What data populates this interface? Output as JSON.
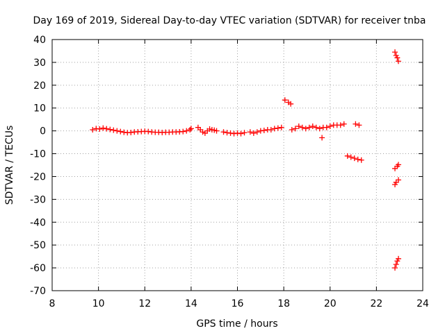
{
  "chart_data": {
    "type": "scatter",
    "title": "Day 169 of 2019, Sidereal Day-to-day VTEC variation (SDTVAR) for receiver tnba",
    "xlabel": "GPS time / hours",
    "ylabel": "SDTVAR / TECUs",
    "xlim": [
      8,
      24
    ],
    "ylim": [
      -70,
      40
    ],
    "xticks": [
      "8",
      "10",
      "12",
      "14",
      "16",
      "18",
      "20",
      "22",
      "24"
    ],
    "yticks": [
      "-70",
      "-60",
      "-50",
      "-40",
      "-30",
      "-20",
      "-10",
      "0",
      "10",
      "20",
      "30",
      "40"
    ],
    "grid": true,
    "marker": "plus",
    "color": "#ff0000",
    "series": [
      {
        "points": [
          [
            9.75,
            0.5
          ],
          [
            9.9,
            1.0
          ],
          [
            10.05,
            0.8
          ],
          [
            10.2,
            1.2
          ],
          [
            10.35,
            0.9
          ],
          [
            10.5,
            0.6
          ],
          [
            10.65,
            0.3
          ],
          [
            10.8,
            0.0
          ],
          [
            10.95,
            -0.3
          ],
          [
            11.1,
            -0.6
          ],
          [
            11.25,
            -0.8
          ],
          [
            11.4,
            -0.7
          ],
          [
            11.55,
            -0.5
          ],
          [
            11.7,
            -0.4
          ],
          [
            11.85,
            -0.3
          ],
          [
            12.0,
            -0.2
          ],
          [
            12.15,
            -0.3
          ],
          [
            12.3,
            -0.5
          ],
          [
            12.45,
            -0.6
          ],
          [
            12.6,
            -0.6
          ],
          [
            12.75,
            -0.7
          ],
          [
            12.9,
            -0.6
          ],
          [
            13.05,
            -0.6
          ],
          [
            13.2,
            -0.5
          ],
          [
            13.35,
            -0.5
          ],
          [
            13.5,
            -0.4
          ],
          [
            13.65,
            -0.3
          ],
          [
            13.8,
            0.0
          ],
          [
            13.95,
            0.5
          ],
          [
            14.0,
            1.0
          ],
          [
            14.3,
            1.5
          ],
          [
            14.4,
            0.5
          ],
          [
            14.5,
            -0.5
          ],
          [
            14.6,
            -1.0
          ],
          [
            14.7,
            0.0
          ],
          [
            14.8,
            0.8
          ],
          [
            14.9,
            0.5
          ],
          [
            15.0,
            0.3
          ],
          [
            15.1,
            0.0
          ],
          [
            15.4,
            -0.5
          ],
          [
            15.55,
            -0.8
          ],
          [
            15.7,
            -1.0
          ],
          [
            15.85,
            -1.2
          ],
          [
            16.0,
            -1.0
          ],
          [
            16.15,
            -1.2
          ],
          [
            16.3,
            -0.8
          ],
          [
            16.55,
            -0.5
          ],
          [
            16.7,
            -1.0
          ],
          [
            16.85,
            -0.5
          ],
          [
            17.0,
            0.0
          ],
          [
            17.15,
            0.2
          ],
          [
            17.3,
            0.5
          ],
          [
            17.45,
            0.5
          ],
          [
            17.6,
            1.0
          ],
          [
            17.75,
            1.2
          ],
          [
            17.9,
            1.5
          ],
          [
            18.35,
            0.5
          ],
          [
            18.5,
            1.0
          ],
          [
            18.65,
            2.0
          ],
          [
            18.8,
            1.5
          ],
          [
            18.95,
            1.0
          ],
          [
            19.1,
            1.5
          ],
          [
            19.25,
            2.0
          ],
          [
            19.4,
            1.5
          ],
          [
            19.55,
            1.0
          ],
          [
            19.7,
            1.5
          ],
          [
            19.85,
            1.5
          ],
          [
            20.0,
            2.0
          ],
          [
            20.15,
            2.5
          ],
          [
            20.3,
            2.5
          ],
          [
            20.45,
            2.5
          ],
          [
            20.6,
            3.0
          ],
          [
            21.1,
            3.0
          ],
          [
            21.25,
            2.5
          ],
          [
            19.65,
            -3.0
          ],
          [
            18.05,
            13.5
          ],
          [
            18.2,
            12.5
          ],
          [
            18.3,
            11.8
          ],
          [
            20.75,
            -11.0
          ],
          [
            20.9,
            -11.5
          ],
          [
            21.05,
            -12.0
          ],
          [
            21.2,
            -12.5
          ],
          [
            21.35,
            -12.8
          ],
          [
            22.8,
            34.5
          ],
          [
            22.85,
            33.0
          ],
          [
            22.9,
            32.0
          ],
          [
            22.95,
            30.5
          ],
          [
            22.8,
            -16.5
          ],
          [
            22.9,
            -15.5
          ],
          [
            22.95,
            -14.8
          ],
          [
            22.8,
            -23.5
          ],
          [
            22.85,
            -22.5
          ],
          [
            22.95,
            -21.5
          ],
          [
            22.8,
            -60.0
          ],
          [
            22.85,
            -58.5
          ],
          [
            22.9,
            -57.0
          ],
          [
            22.95,
            -56.0
          ]
        ]
      }
    ]
  }
}
